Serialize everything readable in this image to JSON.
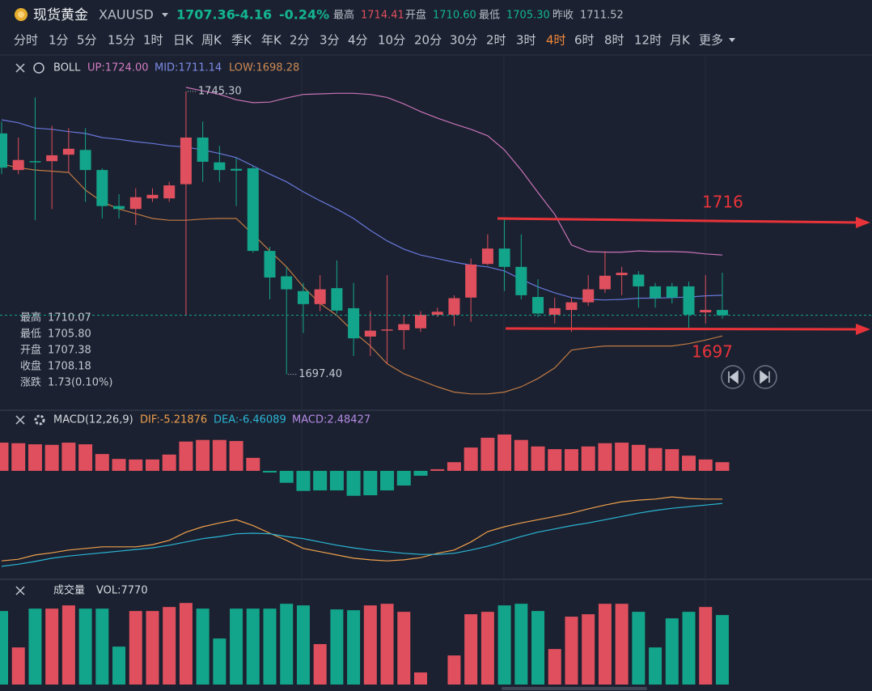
{
  "header": {
    "name": "现货黄金",
    "symbol": "XAUUSD",
    "price": "1707.36",
    "change": "-4.16",
    "change_pct": "-0.24%",
    "stats": [
      [
        "最高",
        "1714.41"
      ],
      [
        "开盘",
        "1710.60"
      ],
      [
        "最低",
        "1705.30"
      ],
      [
        "昨收",
        "1711.52"
      ]
    ]
  },
  "timeframes": [
    "分时",
    "1分",
    "5分",
    "15分",
    "1时",
    "日K",
    "周K",
    "季K",
    "年K",
    "2分",
    "3分",
    "4分",
    "10分",
    "20分",
    "30分",
    "2时",
    "3时",
    "4时",
    "6时",
    "8时",
    "12时",
    "月K",
    "更多"
  ],
  "active_timeframe": 17,
  "chart_data": [
    {
      "type": "candlestick",
      "up_color": "#e04f5d",
      "down_color": "#13a58b",
      "legend": [
        "BOLL",
        "UP:1724.00",
        "MID:1711.14",
        "LOW:1698.28"
      ],
      "legend_colors": [
        "#d6d9df",
        "#d27cc2",
        "#7d8be8",
        "#cf8a55"
      ],
      "ylim": [
        1691.6,
        1751.2
      ],
      "open": [
        1738.2,
        1732.0,
        1733.5,
        1733.5,
        1734.6,
        1735.4,
        1732.0,
        1725.9,
        1725.4,
        1727.2,
        1727.2,
        1729.6,
        1737.5,
        1733.3,
        1732.2,
        1732.3,
        1718.3,
        1714.0,
        1711.5,
        1709.3,
        1712.0,
        1708.6,
        1703.8,
        1704.8,
        1704.9,
        1705.2,
        1707.5,
        1707.5,
        1710.4,
        1716.1,
        1718.7,
        1715.6,
        1710.5,
        1707.5,
        1708.3,
        1709.6,
        1711.8,
        1714.2,
        1714.3,
        1712.3,
        1712.3,
        1712.3,
        1707.9,
        1708.3
      ],
      "high": [
        1740.2,
        1737.5,
        1744.3,
        1739.5,
        1739.1,
        1739.1,
        1732.3,
        1727.9,
        1728.9,
        1728.9,
        1730.0,
        1745.3,
        1740.2,
        1736.1,
        1734.1,
        1732.7,
        1719.0,
        1715.6,
        1712.9,
        1714.2,
        1716.7,
        1712.9,
        1708.1,
        1714.2,
        1707.4,
        1708.1,
        1708.7,
        1710.8,
        1717.0,
        1721.1,
        1723.8,
        1721.1,
        1713.5,
        1710.4,
        1710.4,
        1714.2,
        1718.3,
        1715.6,
        1714.9,
        1712.9,
        1712.9,
        1713.1,
        1714.2,
        1714.6
      ],
      "low": [
        1731.3,
        1731.3,
        1723.5,
        1725.4,
        1731.6,
        1726.6,
        1723.8,
        1723.8,
        1722.7,
        1726.6,
        1726.6,
        1707.4,
        1730.0,
        1730.0,
        1725.9,
        1718.0,
        1710.1,
        1697.4,
        1704.4,
        1708.1,
        1707.7,
        1700.5,
        1700.5,
        1699.2,
        1701.6,
        1704.6,
        1707.1,
        1705.6,
        1706.3,
        1715.9,
        1711.5,
        1710.1,
        1707.1,
        1706.0,
        1704.6,
        1709.0,
        1711.2,
        1710.8,
        1708.7,
        1708.7,
        1709.4,
        1705.3,
        1706.0,
        1706.8
      ],
      "close": [
        1732.4,
        1733.7,
        1733.3,
        1734.5,
        1735.6,
        1732.0,
        1725.9,
        1725.4,
        1727.4,
        1727.8,
        1729.4,
        1737.5,
        1733.4,
        1732.0,
        1731.9,
        1718.3,
        1713.8,
        1711.8,
        1709.3,
        1711.8,
        1708.2,
        1703.5,
        1704.8,
        1705.0,
        1705.9,
        1707.5,
        1708.0,
        1710.3,
        1716.0,
        1718.7,
        1715.6,
        1710.8,
        1707.7,
        1708.6,
        1709.6,
        1711.8,
        1714.1,
        1714.6,
        1712.3,
        1710.3,
        1710.4,
        1707.5,
        1708.3,
        1707.4
      ],
      "lines": [
        {
          "color": "#c873b8",
          "values": [
            null,
            null,
            null,
            null,
            null,
            null,
            null,
            null,
            null,
            null,
            null,
            1746.0,
            1745.4,
            1744.8,
            1743.9,
            1743.4,
            1743.5,
            1744.2,
            1744.8,
            1744.9,
            1745.0,
            1745.0,
            1744.8,
            1744.3,
            1743.2,
            1741.9,
            1740.8,
            1739.8,
            1738.9,
            1737.8,
            1735.4,
            1732.0,
            1728.2,
            1724.5,
            1719.3,
            1718.2,
            1718.1,
            1718.1,
            1718.3,
            1718.2,
            1718.2,
            1718.1,
            1717.8,
            1717.6
          ]
        },
        {
          "color": "#6878dc",
          "values": [
            1740.5,
            1740.0,
            1739.1,
            1738.9,
            1738.5,
            1738.2,
            1737.5,
            1737.2,
            1736.8,
            1736.5,
            1736.1,
            1735.9,
            1735.4,
            1734.8,
            1734.1,
            1732.7,
            1731.3,
            1730.0,
            1728.3,
            1726.8,
            1725.4,
            1723.8,
            1721.8,
            1720.0,
            1718.6,
            1717.6,
            1717.0,
            1716.4,
            1715.9,
            1715.6,
            1714.9,
            1713.5,
            1712.2,
            1711.2,
            1710.4,
            1710.1,
            1710.0,
            1710.1,
            1710.3,
            1710.3,
            1710.4,
            1710.5,
            1710.7,
            1710.8
          ]
        },
        {
          "color": "#c07a45",
          "values": [
            1733.0,
            1732.4,
            1732.0,
            1731.8,
            1731.6,
            1728.6,
            1726.6,
            1725.4,
            1724.6,
            1723.8,
            1723.5,
            1723.5,
            1723.7,
            1723.8,
            1723.8,
            1721.1,
            1718.3,
            1715.6,
            1712.2,
            1709.4,
            1707.4,
            1704.6,
            1702.2,
            1699.2,
            1697.5,
            1696.4,
            1695.3,
            1694.4,
            1694.1,
            1694.1,
            1694.4,
            1695.3,
            1696.7,
            1698.5,
            1701.5,
            1701.9,
            1702.2,
            1702.2,
            1702.2,
            1702.2,
            1702.2,
            1702.6,
            1703.2,
            1703.9
          ]
        }
      ],
      "high_label": "1745.30",
      "low_label": "1697.40",
      "info": [
        [
          "最高",
          "1710.07"
        ],
        [
          "最低",
          "1705.80"
        ],
        [
          "开盘",
          "1707.38"
        ],
        [
          "收盘",
          "1708.18"
        ],
        [
          "涨跌",
          "1.73(0.10%)"
        ]
      ],
      "annotations": [
        "1716",
        "1697"
      ],
      "annotation_color": "#e8333a"
    },
    {
      "type": "macd",
      "legend": [
        "MACD(12,26,9)",
        "DIF:-5.21876",
        "DEA:-6.46089",
        "MACD:2.48427"
      ],
      "legend_colors": [
        "#d6d9df",
        "#f0a04c",
        "#2bb6d6",
        "#b68be6"
      ],
      "ylim": [
        -19.4,
        7.0
      ],
      "values": [
        5.2,
        5.1,
        4.9,
        4.8,
        5.2,
        4.9,
        3.1,
        2.2,
        2.1,
        2.1,
        3.0,
        5.4,
        5.7,
        5.7,
        5.5,
        2.4,
        -0.3,
        -2.2,
        -3.7,
        -3.6,
        -3.6,
        -4.6,
        -4.5,
        -3.6,
        -2.7,
        -0.9,
        0.3,
        1.6,
        4.3,
        6.1,
        6.7,
        5.7,
        4.5,
        4.0,
        4.0,
        4.5,
        5.1,
        5.2,
        4.8,
        4.2,
        4.0,
        2.8,
        2.1,
        1.6
      ],
      "lines": [
        {
          "color": "#f0a04c",
          "values": [
            -16.6,
            -16.3,
            -15.5,
            -15.1,
            -14.6,
            -14.3,
            -14.0,
            -14.0,
            -14.0,
            -13.6,
            -12.8,
            -11.3,
            -10.3,
            -9.6,
            -9.0,
            -10.1,
            -11.5,
            -12.8,
            -14.3,
            -14.9,
            -15.5,
            -16.1,
            -16.4,
            -16.6,
            -16.4,
            -16.0,
            -15.2,
            -14.6,
            -13.1,
            -11.2,
            -10.3,
            -9.6,
            -9.0,
            -8.4,
            -7.8,
            -7.0,
            -6.3,
            -5.7,
            -5.4,
            -5.2,
            -4.8,
            -5.1,
            -5.2,
            -5.2
          ]
        },
        {
          "color": "#2bb6d6",
          "values": [
            -17.6,
            -17.2,
            -16.7,
            -16.1,
            -15.7,
            -15.4,
            -15.1,
            -14.8,
            -14.5,
            -14.2,
            -13.7,
            -13.1,
            -12.5,
            -12.1,
            -11.6,
            -11.5,
            -11.6,
            -12.1,
            -12.5,
            -13.1,
            -13.7,
            -14.2,
            -14.6,
            -14.9,
            -15.2,
            -15.4,
            -15.4,
            -15.2,
            -14.6,
            -13.9,
            -13.0,
            -12.1,
            -11.3,
            -10.7,
            -10.1,
            -9.6,
            -9.0,
            -8.4,
            -7.8,
            -7.3,
            -6.9,
            -6.6,
            -6.3,
            -6.0
          ]
        }
      ]
    },
    {
      "type": "volume",
      "legend": [
        "成交量",
        "VOL:7770"
      ],
      "ylim": [
        0,
        9500
      ],
      "values": [
        8220,
        4150,
        8490,
        8490,
        8850,
        8490,
        8490,
        4240,
        8220,
        8220,
        8670,
        9120,
        8490,
        5150,
        8490,
        8490,
        8490,
        9030,
        8850,
        4520,
        8400,
        8310,
        8850,
        9030,
        8130,
        1350,
        null,
        3250,
        7860,
        8130,
        8850,
        9030,
        8220,
        3970,
        7590,
        7860,
        9030,
        9030,
        8130,
        4150,
        7400,
        8130,
        8670,
        7770
      ]
    }
  ]
}
